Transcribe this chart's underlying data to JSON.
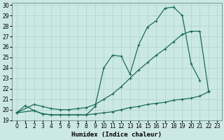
{
  "xlabel": "Humidex (Indice chaleur)",
  "bg_color": "#cce8e4",
  "grid_color": "#aad4d0",
  "line_color": "#1a6b5a",
  "xlim": [
    -0.5,
    23.5
  ],
  "ylim": [
    19,
    30.2
  ],
  "xticks": [
    0,
    1,
    2,
    3,
    4,
    5,
    6,
    7,
    8,
    9,
    10,
    11,
    12,
    13,
    14,
    15,
    16,
    17,
    18,
    19,
    20,
    21,
    22,
    23
  ],
  "yticks": [
    19,
    20,
    21,
    22,
    23,
    24,
    25,
    26,
    27,
    28,
    29,
    30
  ],
  "line1_x": [
    0,
    1,
    2,
    3,
    4,
    5,
    6,
    7,
    8,
    9,
    10,
    11,
    12,
    13,
    14,
    15,
    16,
    17,
    18,
    19,
    20,
    21
  ],
  "line1_y": [
    19.7,
    20.4,
    19.9,
    19.6,
    19.5,
    19.5,
    19.5,
    19.5,
    19.5,
    20.3,
    24.0,
    25.2,
    25.1,
    23.4,
    26.2,
    27.9,
    28.5,
    29.7,
    29.8,
    29.0,
    24.4,
    22.8
  ],
  "line2_x": [
    0,
    2,
    3,
    4,
    5,
    6,
    7,
    8,
    9,
    10,
    11,
    12,
    13,
    14,
    15,
    16,
    17,
    18,
    19,
    20,
    21,
    22
  ],
  "line2_y": [
    19.7,
    20.5,
    20.3,
    20.1,
    20.0,
    20.0,
    20.1,
    20.2,
    20.5,
    21.0,
    21.5,
    22.2,
    23.0,
    23.8,
    24.5,
    25.2,
    25.8,
    26.5,
    27.2,
    27.5,
    27.5,
    21.8
  ],
  "line3_x": [
    0,
    2,
    3,
    4,
    5,
    6,
    7,
    8,
    9,
    10,
    11,
    12,
    13,
    14,
    15,
    16,
    17,
    18,
    19,
    20,
    21,
    22
  ],
  "line3_y": [
    19.7,
    19.9,
    19.6,
    19.5,
    19.5,
    19.5,
    19.5,
    19.5,
    19.6,
    19.7,
    19.8,
    20.0,
    20.2,
    20.3,
    20.5,
    20.6,
    20.7,
    20.9,
    21.0,
    21.1,
    21.3,
    21.7
  ]
}
